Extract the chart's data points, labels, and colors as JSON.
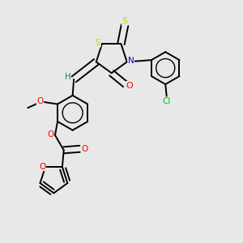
{
  "background_color": "#e8e8e8",
  "bond_color": "#000000",
  "atom_colors": {
    "S": "#cccc00",
    "N": "#0000ff",
    "O": "#ff0000",
    "Cl": "#00cc00",
    "C": "#000000",
    "H": "#008080"
  },
  "figsize": [
    3.0,
    3.0
  ],
  "dpi": 100
}
